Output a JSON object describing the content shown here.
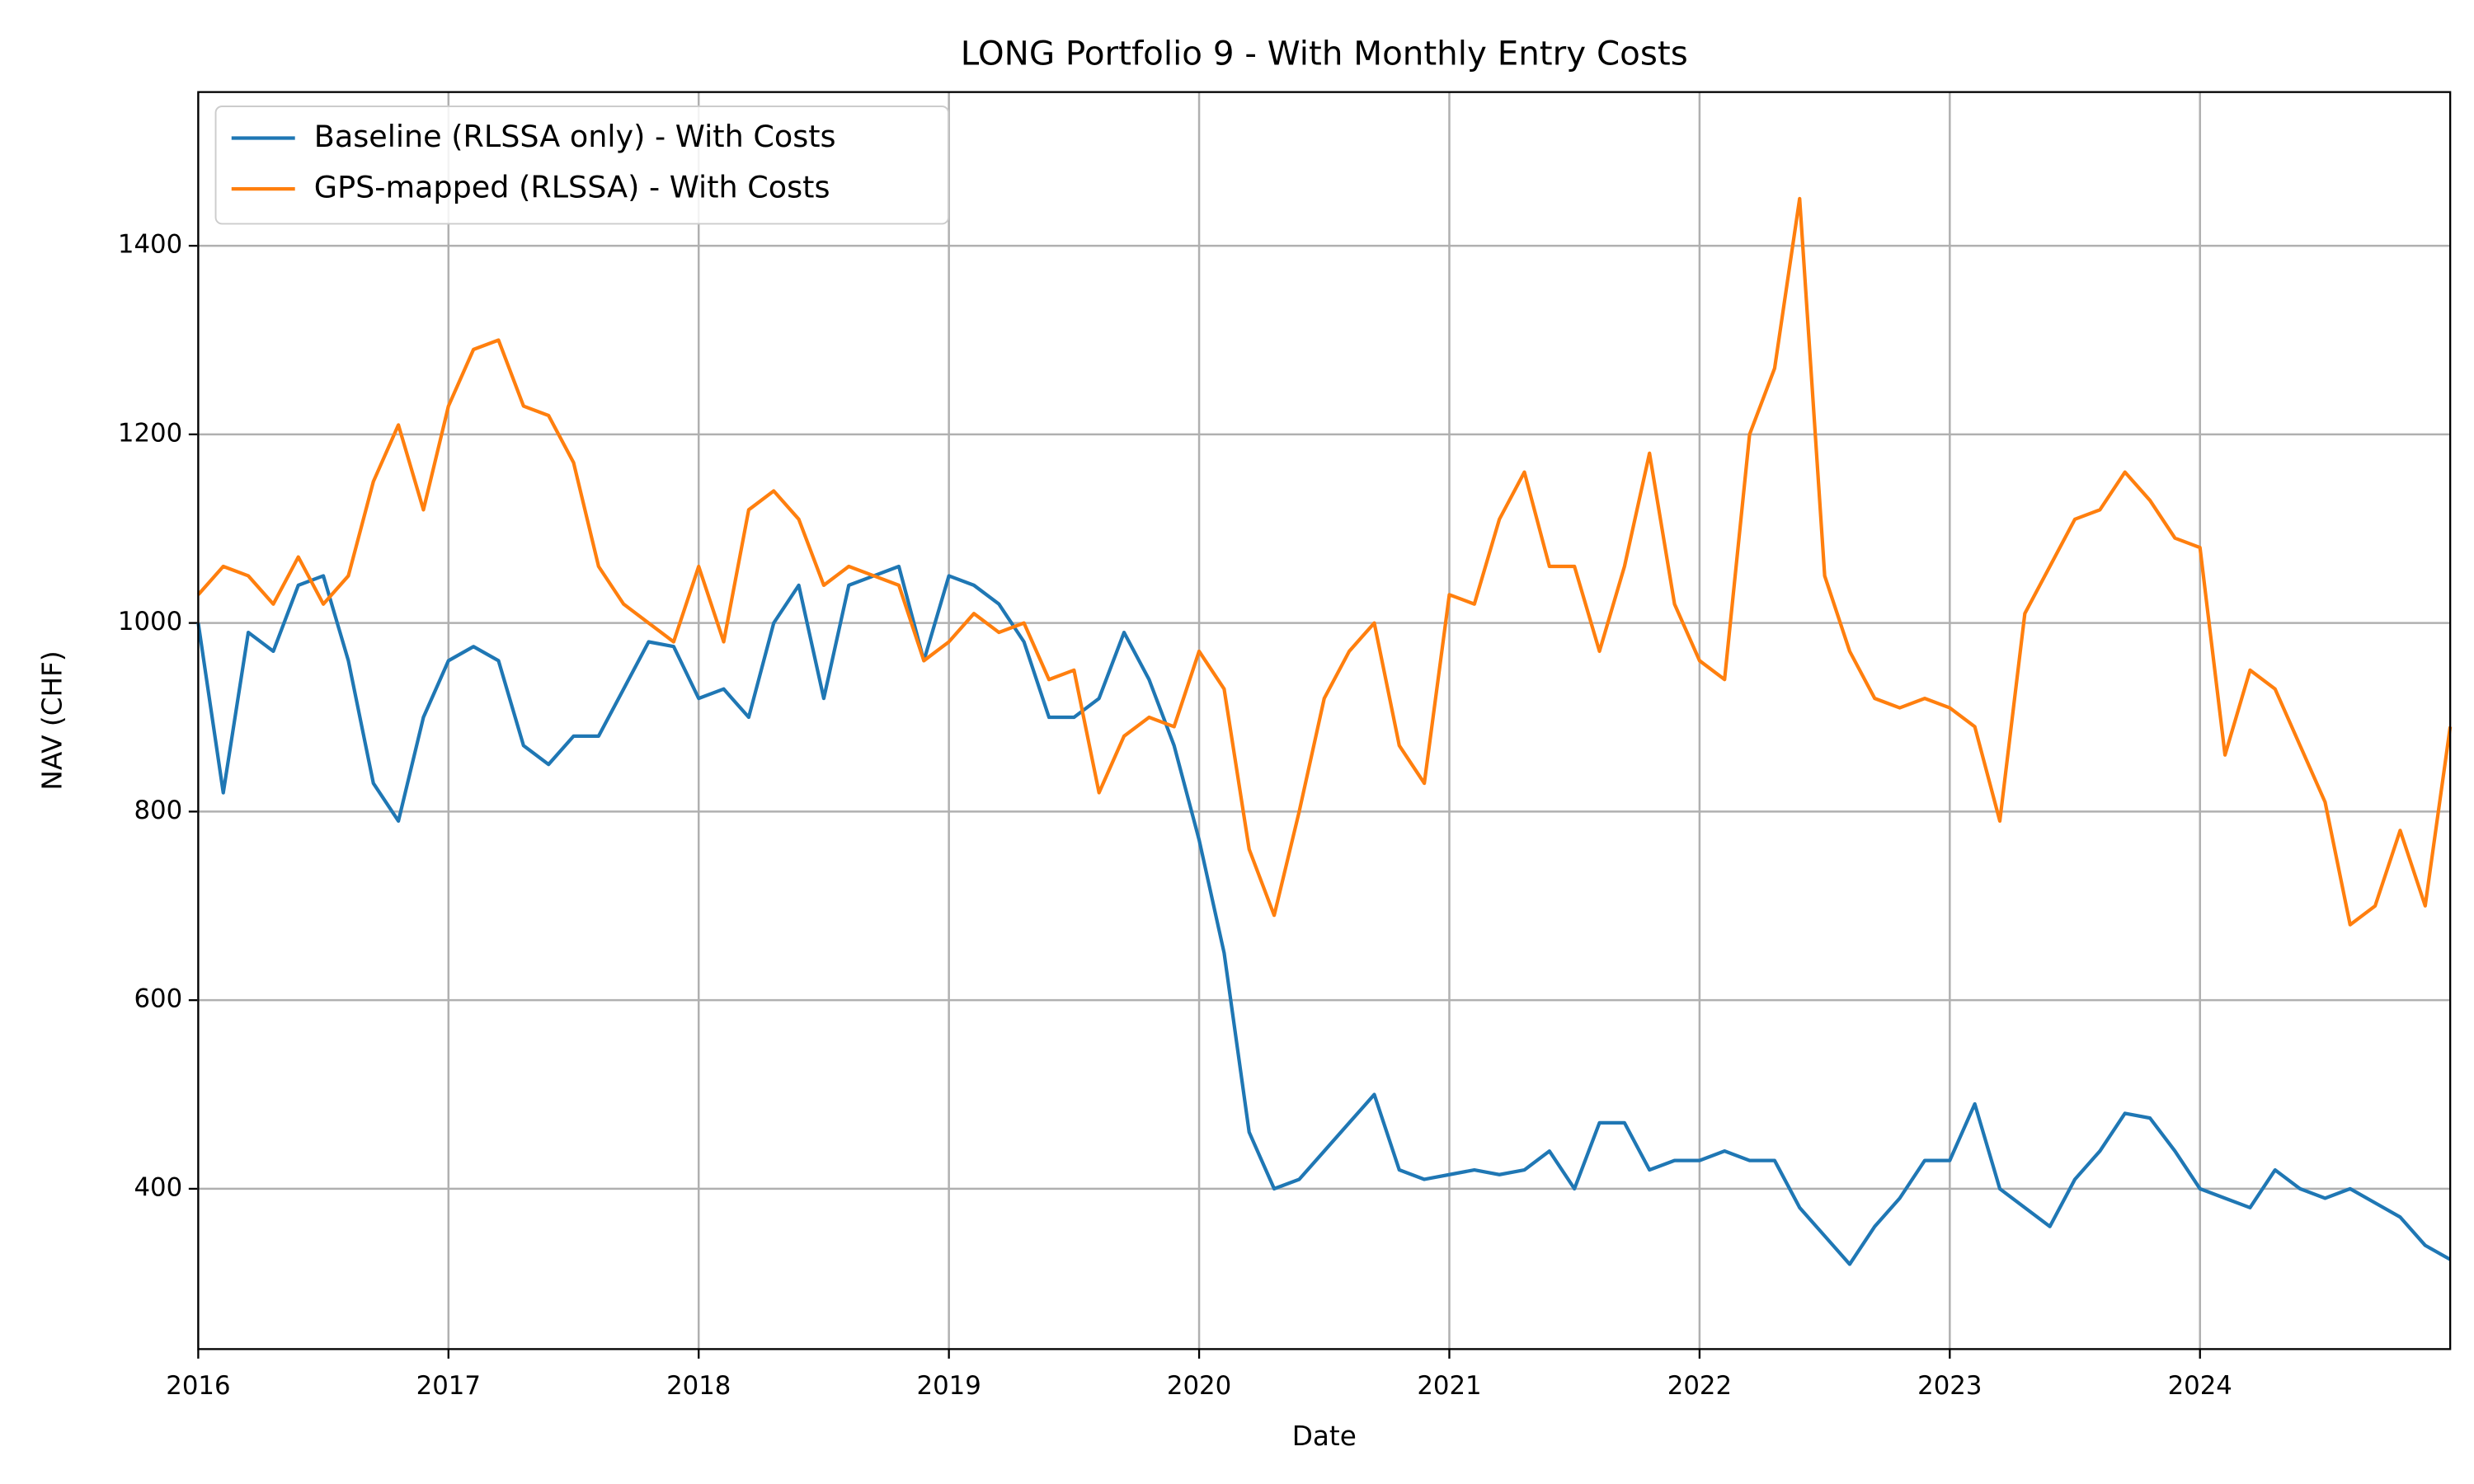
{
  "chart_data": {
    "type": "line",
    "title": "LONG Portfolio 9 - With Monthly Entry Costs",
    "x_label": "Date",
    "y_label": "NAV (CHF)",
    "x": [
      2016.0,
      2016.1,
      2016.2,
      2016.3,
      2016.4,
      2016.5,
      2016.6,
      2016.7,
      2016.8,
      2016.9,
      2017.0,
      2017.1,
      2017.2,
      2017.3,
      2017.4,
      2017.5,
      2017.6,
      2017.7,
      2017.8,
      2017.9,
      2018.0,
      2018.1,
      2018.2,
      2018.3,
      2018.4,
      2018.5,
      2018.6,
      2018.7,
      2018.8,
      2018.9,
      2019.0,
      2019.1,
      2019.2,
      2019.3,
      2019.4,
      2019.5,
      2019.6,
      2019.7,
      2019.8,
      2019.9,
      2020.0,
      2020.1,
      2020.2,
      2020.3,
      2020.4,
      2020.5,
      2020.6,
      2020.7,
      2020.8,
      2020.9,
      2021.0,
      2021.1,
      2021.2,
      2021.3,
      2021.4,
      2021.5,
      2021.6,
      2021.7,
      2021.8,
      2021.9,
      2022.0,
      2022.1,
      2022.2,
      2022.3,
      2022.4,
      2022.5,
      2022.6,
      2022.7,
      2022.8,
      2022.9,
      2023.0,
      2023.1,
      2023.2,
      2023.3,
      2023.4,
      2023.5,
      2023.6,
      2023.7,
      2023.8,
      2023.9,
      2024.0,
      2024.1,
      2024.2,
      2024.3,
      2024.4,
      2024.5,
      2024.6,
      2024.7,
      2024.8,
      2024.9,
      2025.0
    ],
    "series": [
      {
        "name": "Baseline (RLSSA only) - With Costs",
        "color": "#1f77b4",
        "values": [
          1000,
          820,
          990,
          970,
          1040,
          1050,
          960,
          830,
          790,
          900,
          960,
          975,
          960,
          870,
          850,
          880,
          880,
          930,
          980,
          975,
          920,
          930,
          900,
          1000,
          1040,
          920,
          1040,
          1050,
          1060,
          960,
          1050,
          1040,
          1020,
          980,
          900,
          900,
          920,
          990,
          940,
          870,
          770,
          650,
          460,
          400,
          410,
          440,
          470,
          500,
          420,
          410,
          415,
          420,
          415,
          420,
          440,
          400,
          470,
          470,
          420,
          430,
          430,
          440,
          430,
          430,
          380,
          350,
          320,
          360,
          390,
          430,
          430,
          490,
          400,
          380,
          360,
          410,
          440,
          480,
          475,
          440,
          400,
          390,
          380,
          420,
          400,
          390,
          400,
          385,
          370,
          340,
          325
        ]
      },
      {
        "name": "GPS-mapped (RLSSA) - With Costs",
        "color": "#ff7f0e",
        "values": [
          1030,
          1060,
          1050,
          1020,
          1070,
          1020,
          1050,
          1150,
          1210,
          1120,
          1230,
          1290,
          1300,
          1230,
          1220,
          1170,
          1060,
          1020,
          1000,
          980,
          1060,
          980,
          1120,
          1140,
          1110,
          1040,
          1060,
          1050,
          1040,
          960,
          980,
          1010,
          990,
          1000,
          940,
          950,
          820,
          880,
          900,
          890,
          970,
          930,
          760,
          690,
          800,
          920,
          970,
          1000,
          870,
          830,
          1030,
          1020,
          1110,
          1160,
          1060,
          1060,
          970,
          1060,
          1180,
          1020,
          960,
          940,
          1200,
          1270,
          1450,
          1050,
          970,
          920,
          910,
          920,
          910,
          890,
          790,
          1010,
          1060,
          1110,
          1120,
          1160,
          1130,
          1090,
          1080,
          860,
          950,
          930,
          870,
          810,
          680,
          700,
          780,
          700,
          890
        ]
      }
    ],
    "xlim": [
      2016,
      2025
    ],
    "xticks": [
      2016,
      2017,
      2018,
      2019,
      2020,
      2021,
      2022,
      2023,
      2024
    ],
    "ylim": [
      230,
      1563
    ],
    "yticks": [
      400,
      600,
      800,
      1000,
      1200,
      1400
    ],
    "grid": true,
    "legend": "upper left"
  }
}
